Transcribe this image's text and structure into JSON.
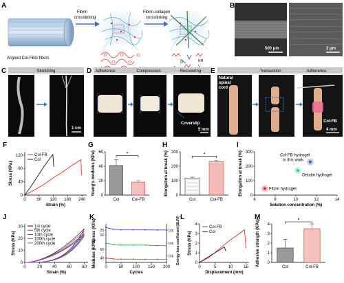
{
  "panels": {
    "A": {
      "label": "A",
      "fibrin_text": "Fibrin\ncrosslinking",
      "collagen_text": "Fibrin-collagen\ncrosslinking",
      "fiber_caption": "Aligned Col-FBG fibers"
    },
    "B": {
      "label": "B",
      "scale_left": "500 μm",
      "scale_right": "2 μm"
    },
    "C": {
      "label": "C",
      "header": "Stretching",
      "scale": "1 cm"
    },
    "D": {
      "label": "D",
      "headers": [
        "Adherence",
        "Compression",
        "Recovering"
      ],
      "coverslip": "Coverslip",
      "scale": "5 mm"
    },
    "E": {
      "label": "E",
      "headers": [
        "Transection",
        "Adherence"
      ],
      "cord_label": "Natural\nspinal\ncord",
      "colfb": "Col-FB",
      "scale": "4 mm"
    }
  },
  "colors": {
    "red": "#e0312f",
    "black": "#1a1a1a",
    "gray_bar": "#9a9a9a",
    "red_bar_fill": "#f6c2bf",
    "box_gray": "#c9c9c9",
    "blue_axis": "#2f3fd6",
    "green_axis": "#21a336"
  },
  "chart_data": [
    {
      "id": "F",
      "label": "F",
      "type": "line",
      "xlabel": "Strain (%)",
      "ylabel": "Stress (KPa)",
      "xlim": [
        0,
        260
      ],
      "ylim": [
        0,
        130
      ],
      "xticks": [
        0,
        60,
        120,
        180,
        240
      ],
      "yticks": [
        0,
        40,
        80,
        120
      ],
      "series": [
        {
          "name": "Col-FB",
          "color": "#e0312f",
          "points": [
            [
              0,
              0
            ],
            [
              40,
              15
            ],
            [
              80,
              32
            ],
            [
              120,
              52
            ],
            [
              160,
              70
            ],
            [
              200,
              90
            ],
            [
              236,
              106
            ],
            [
              238,
              60
            ]
          ]
        },
        {
          "name": "Col",
          "color": "#1a1a1a",
          "points": [
            [
              0,
              0
            ],
            [
              25,
              25
            ],
            [
              50,
              52
            ],
            [
              80,
              85
            ],
            [
              100,
              105
            ],
            [
              118,
              122
            ],
            [
              122,
              85
            ]
          ]
        }
      ]
    },
    {
      "id": "G",
      "label": "G",
      "type": "bar",
      "xlabel": "",
      "ylabel": "Young's modulus (KPa)",
      "ylim": [
        0,
        60
      ],
      "yticks": [
        0,
        20,
        40,
        60
      ],
      "categories": [
        "Col",
        "Col-FB"
      ],
      "values": [
        41,
        18
      ],
      "errors": [
        8,
        2
      ],
      "sig": "*"
    },
    {
      "id": "H",
      "label": "H",
      "type": "bar",
      "xlabel": "",
      "ylabel": "Elongation at break (%)",
      "ylim": [
        0,
        300
      ],
      "yticks": [
        0,
        100,
        200,
        300
      ],
      "categories": [
        "Col",
        "Col-FB"
      ],
      "values": [
        118,
        232
      ],
      "errors": [
        6,
        9
      ],
      "sig": "*"
    },
    {
      "id": "I",
      "label": "I",
      "type": "scatter",
      "xlabel": "Solution concentration (%)",
      "ylabel": "Elongation at break (%)",
      "xlim": [
        6,
        14
      ],
      "ylim": [
        0,
        300
      ],
      "xticks": [
        6,
        8,
        10,
        12,
        14
      ],
      "yticks": [
        0,
        100,
        200,
        300
      ],
      "points": [
        {
          "name": "Col-FB hydrogel in this work",
          "x": 11.4,
          "y": 230,
          "color": "#4352c9"
        },
        {
          "name": "Gelatin hydrogel",
          "x": 10.2,
          "y": 170,
          "color": "#36c9a6"
        },
        {
          "name": "Fibrin hydrogel",
          "x": 7,
          "y": 45,
          "color": "#e0312f"
        }
      ]
    },
    {
      "id": "J",
      "label": "J",
      "type": "line",
      "xlabel": "Strain (%)",
      "ylabel": "Stress (KPa)",
      "xlim": [
        0,
        85
      ],
      "ylim": [
        0,
        32
      ],
      "xticks": [
        0,
        20,
        40,
        60,
        80
      ],
      "yticks": [
        0,
        10,
        20,
        30
      ],
      "series": [
        {
          "name": "1st cycle",
          "color": "#1a1a1a",
          "peak": 28
        },
        {
          "name": "5th cycle",
          "color": "#e0312f",
          "peak": 26
        },
        {
          "name": "10th cycle",
          "color": "#2f3fd6",
          "peak": 24
        },
        {
          "name": "100th cycle",
          "color": "#21a336",
          "peak": 23
        },
        {
          "name": "200th cycle",
          "color": "#a335b8",
          "peak": 22
        }
      ]
    },
    {
      "id": "K",
      "label": "K",
      "type": "line",
      "xlabel": "Cycles",
      "ylabel_left_top": "Stress (KPa)",
      "ylabel_left_bottom": "Modulus (KPa)",
      "ylabel_right": "Energy loss coefficient (ΔU/U)",
      "xlim": [
        0,
        200
      ],
      "xticks": [
        0,
        50,
        100,
        150,
        200
      ],
      "yticks_stress": [
        20,
        25
      ],
      "yticks_modulus": [
        40,
        60
      ],
      "yticks_right": [
        0.4,
        0.6,
        0.8
      ],
      "series": [
        {
          "name": "Stress",
          "color": "#2f3fd6",
          "values": [
            28,
            26,
            25.5,
            25.5,
            25.4,
            25.3,
            25.3
          ]
        },
        {
          "name": "Energy loss coefficient",
          "color": "#21a336",
          "values": [
            0.6,
            0.58,
            0.57,
            0.57,
            0.57,
            0.56,
            0.56
          ]
        },
        {
          "name": "Modulus",
          "color": "#e0312f",
          "values": [
            40,
            38,
            37.5,
            37.5,
            37.3,
            37.3,
            37.2
          ]
        }
      ]
    },
    {
      "id": "L",
      "label": "L",
      "type": "line",
      "xlabel": "Displacement (mm)",
      "ylabel": "Stress (KPa)",
      "xlim": [
        0,
        16
      ],
      "ylim": [
        0,
        4
      ],
      "xticks": [
        0,
        5,
        10,
        15
      ],
      "yticks": [
        0,
        1,
        2,
        3,
        4
      ],
      "series": [
        {
          "name": "Col-FB",
          "color": "#e0312f",
          "points": [
            [
              0,
              0
            ],
            [
              3,
              0.5
            ],
            [
              6,
              1.3
            ],
            [
              9,
              2.1
            ],
            [
              12,
              2.8
            ],
            [
              14.5,
              3.4
            ],
            [
              15,
              1.5
            ]
          ]
        },
        {
          "name": "Col",
          "color": "#1a1a1a",
          "points": [
            [
              0,
              0
            ],
            [
              2,
              0.4
            ],
            [
              4,
              0.8
            ],
            [
              6,
              1.2
            ],
            [
              7.5,
              1.5
            ],
            [
              8,
              1.6
            ],
            [
              8.5,
              1.2
            ]
          ]
        }
      ]
    },
    {
      "id": "M",
      "label": "M",
      "type": "bar",
      "xlabel": "",
      "ylabel": "Adhesive strength (KPa)",
      "ylim": [
        0,
        4
      ],
      "yticks": [
        0,
        1,
        2,
        3,
        4
      ],
      "categories": [
        "Col",
        "Col-FB"
      ],
      "values": [
        1.5,
        3.5
      ],
      "errors": [
        0.9,
        0.5
      ],
      "sig": "*"
    }
  ]
}
